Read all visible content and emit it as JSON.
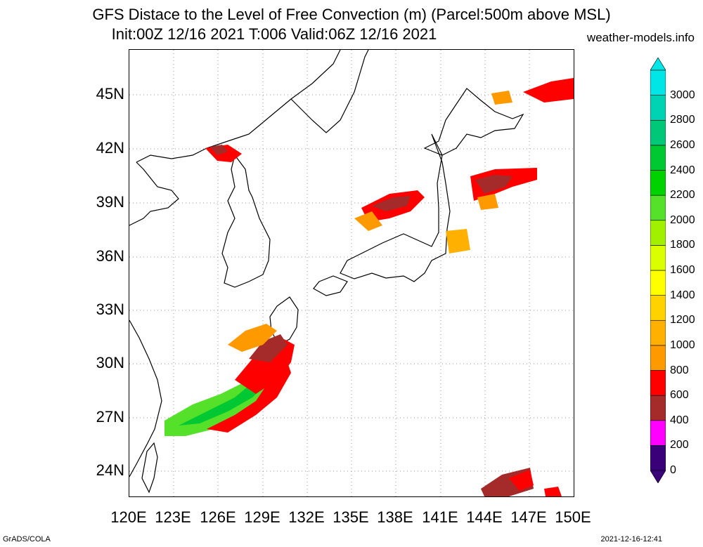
{
  "header": {
    "title_line1": "GFS Distace to the Level of Free Convection (m) (Parcel:500m above MSL)",
    "title_line2": "Init:00Z 12/16 2021 T:006 Valid:06Z 12/16 2021",
    "credit": "weather-models.info"
  },
  "map": {
    "lat_labels": [
      "45N",
      "42N",
      "39N",
      "36N",
      "33N",
      "30N",
      "27N",
      "24N"
    ],
    "lon_labels": [
      "120E",
      "123E",
      "126E",
      "129E",
      "132E",
      "135E",
      "138E",
      "141E",
      "144E",
      "147E",
      "150E"
    ],
    "gridlines": true
  },
  "colorbar": {
    "labels": [
      "0",
      "200",
      "400",
      "600",
      "800",
      "1000",
      "1200",
      "1400",
      "1600",
      "1800",
      "2000",
      "2200",
      "2400",
      "2600",
      "2800",
      "3000"
    ],
    "colors": [
      "#3a007a",
      "#ff00ff",
      "#a52a2a",
      "#ff0000",
      "#ff9900",
      "#ffb000",
      "#ffd200",
      "#ffff00",
      "#d9ff00",
      "#a0f000",
      "#55e02a",
      "#00d200",
      "#00c832",
      "#00c878",
      "#00d2b4",
      "#00e6e6"
    ]
  },
  "footer": {
    "left": "GrADS/COLA",
    "right": "2021-12-16-12:41"
  }
}
